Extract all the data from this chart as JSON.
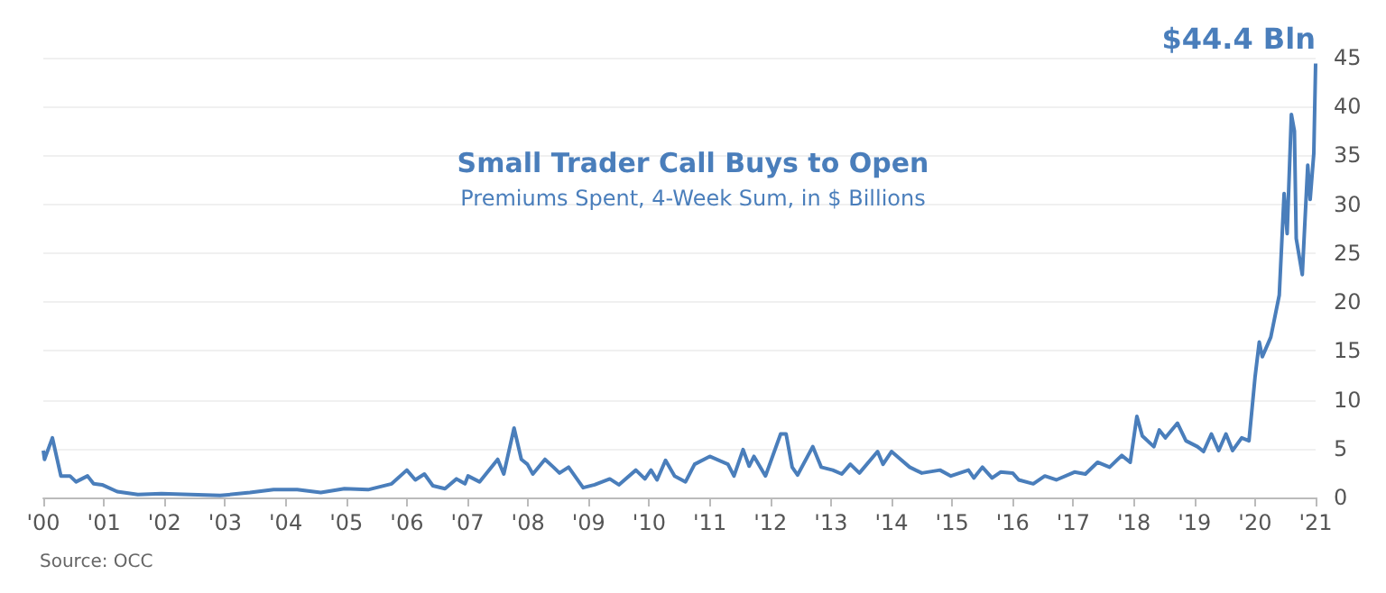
{
  "chart_data": {
    "type": "line",
    "title": "Small Trader Call Buys to Open",
    "subtitle": "Premiums Spent, 4-Week Sum, in $ Billions",
    "annotations": [
      {
        "text": "$44.4 Bln",
        "x": 2021.0,
        "y": 44.4
      },
      "Source: OCC"
    ],
    "x": [
      2000.0,
      2000.02,
      2000.15,
      2000.29,
      2000.44,
      2000.54,
      2000.73,
      2000.83,
      2000.97,
      2001.22,
      2001.56,
      2001.95,
      2002.43,
      2002.92,
      2003.41,
      2003.8,
      2004.19,
      2004.58,
      2004.97,
      2005.36,
      2005.75,
      2006.0,
      2006.14,
      2006.29,
      2006.43,
      2006.63,
      2006.82,
      2006.96,
      2007.01,
      2007.2,
      2007.5,
      2007.6,
      2007.77,
      2007.89,
      2007.99,
      2008.08,
      2008.28,
      2008.42,
      2008.52,
      2008.67,
      2008.91,
      2009.1,
      2009.35,
      2009.5,
      2009.78,
      2009.93,
      2010.03,
      2010.13,
      2010.27,
      2010.42,
      2010.6,
      2010.75,
      2011.0,
      2011.3,
      2011.4,
      2011.55,
      2011.65,
      2011.73,
      2011.92,
      2012.17,
      2012.26,
      2012.36,
      2012.45,
      2012.7,
      2012.84,
      2013.03,
      2013.18,
      2013.32,
      2013.47,
      2013.77,
      2013.86,
      2014.0,
      2014.3,
      2014.5,
      2014.8,
      2014.98,
      2015.27,
      2015.36,
      2015.5,
      2015.66,
      2015.8,
      2016.0,
      2016.1,
      2016.34,
      2016.53,
      2016.72,
      2017.02,
      2017.2,
      2017.4,
      2017.6,
      2017.8,
      2017.94,
      2018.05,
      2018.14,
      2018.33,
      2018.42,
      2018.52,
      2018.72,
      2018.86,
      2019.05,
      2019.15,
      2019.28,
      2019.4,
      2019.52,
      2019.63,
      2019.78,
      2019.9,
      2020.0,
      2020.07,
      2020.12,
      2020.26,
      2020.4,
      2020.48,
      2020.53,
      2020.6,
      2020.65,
      2020.68,
      2020.78,
      2020.87,
      2020.91,
      2020.97,
      2021.0
    ],
    "series": [
      {
        "color": "#4a7ebb",
        "values": [
          4.8,
          3.9,
          6.1,
          2.2,
          2.2,
          1.6,
          2.2,
          1.4,
          1.3,
          0.6,
          0.3,
          0.4,
          0.3,
          0.2,
          0.5,
          0.8,
          0.8,
          0.5,
          0.9,
          0.8,
          1.4,
          2.8,
          1.8,
          2.4,
          1.2,
          0.9,
          1.9,
          1.4,
          2.2,
          1.6,
          3.9,
          2.4,
          7.1,
          3.9,
          3.4,
          2.4,
          3.9,
          3.1,
          2.5,
          3.1,
          1.0,
          1.3,
          1.9,
          1.3,
          2.8,
          1.9,
          2.8,
          1.8,
          3.8,
          2.2,
          1.6,
          3.4,
          4.2,
          3.4,
          2.2,
          4.9,
          3.2,
          4.2,
          2.2,
          6.5,
          6.5,
          3.1,
          2.3,
          5.2,
          3.1,
          2.8,
          2.4,
          3.4,
          2.5,
          4.7,
          3.4,
          4.7,
          3.1,
          2.5,
          2.8,
          2.2,
          2.8,
          2.0,
          3.1,
          2.0,
          2.6,
          2.5,
          1.8,
          1.4,
          2.2,
          1.8,
          2.6,
          2.4,
          3.6,
          3.1,
          4.3,
          3.6,
          8.3,
          6.3,
          5.2,
          6.9,
          6.1,
          7.6,
          5.8,
          5.2,
          4.7,
          6.5,
          4.8,
          6.5,
          4.8,
          6.1,
          5.8,
          12.3,
          15.9,
          14.4,
          16.4,
          20.7,
          31.1,
          27,
          39.2,
          37.5,
          26.5,
          22.8,
          34,
          30.5,
          35.2,
          44.4
        ]
      }
    ],
    "xlim": [
      2000,
      2021
    ],
    "xticks": [
      {
        "value": 2000,
        "label": "'00"
      },
      {
        "value": 2001,
        "label": "'01"
      },
      {
        "value": 2002,
        "label": "'02"
      },
      {
        "value": 2003,
        "label": "'03"
      },
      {
        "value": 2004,
        "label": "'04"
      },
      {
        "value": 2005,
        "label": "'05"
      },
      {
        "value": 2006,
        "label": "'06"
      },
      {
        "value": 2007,
        "label": "'07"
      },
      {
        "value": 2008,
        "label": "'08"
      },
      {
        "value": 2009,
        "label": "'09"
      },
      {
        "value": 2010,
        "label": "'10"
      },
      {
        "value": 2011,
        "label": "'11"
      },
      {
        "value": 2012,
        "label": "'12"
      },
      {
        "value": 2013,
        "label": "'13"
      },
      {
        "value": 2014,
        "label": "'14"
      },
      {
        "value": 2015,
        "label": "'15"
      },
      {
        "value": 2016,
        "label": "'16"
      },
      {
        "value": 2017,
        "label": "'17"
      },
      {
        "value": 2018,
        "label": "'18"
      },
      {
        "value": 2019,
        "label": "'19"
      },
      {
        "value": 2020,
        "label": "'20"
      },
      {
        "value": 2021,
        "label": "'21"
      }
    ],
    "ylim": [
      0,
      45
    ],
    "yticks": [
      0,
      5,
      10,
      15,
      20,
      25,
      30,
      35,
      40,
      45
    ],
    "grid": "y",
    "marker": "none",
    "line_style": "solid"
  }
}
